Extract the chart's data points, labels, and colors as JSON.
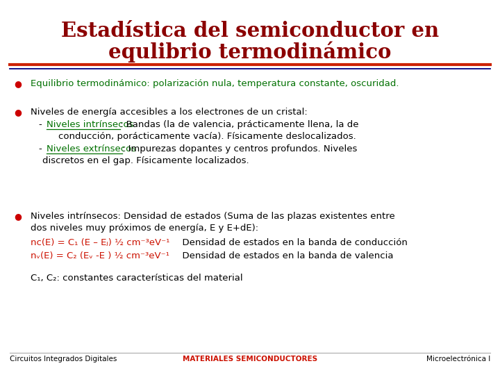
{
  "title_line1": "Estadística del semiconductor en",
  "title_line2": "equlibrio termodinámico",
  "title_color": "#8B0000",
  "bg_color": "#FFFFFF",
  "sep_red": "#CC2200",
  "sep_navy": "#000080",
  "bullet_color": "#CC0000",
  "text_color": "#000000",
  "green_color": "#007000",
  "red_color": "#CC1100",
  "bullet1": "Equilibrio termodinámico: polarización nula, temperatura constante, oscuridad.",
  "bullet2_main": "Niveles de energía accesibles a los electrones de un cristal:",
  "sub1_green": "Niveles intrínsecos",
  "sub1_rest": ": Bandas (la de valencia, prácticamente llena, la de",
  "sub1_cont": "conducción, porácticamente vacía). Físicamente deslocalizados.",
  "sub2_green": "Niveles extrínsecos",
  "sub2_rest": ": Impurezas dopantes y centros profundos. Niveles",
  "sub2_cont": "discretos en el gap. Físicamente localizados.",
  "bullet3_l1": "Niveles intrínsecos: Densidad de estados (Suma de las plazas existentes entre",
  "bullet3_l2": "dos niveles muy próximos de energía, E y E+dE):",
  "eq1_red": "nc(E) = C₁ (E – Eⱼ) ½ cm⁻³eV⁻¹",
  "eq1_black": "  Densidad de estados en la banda de conducción",
  "eq2_red": "nᵥ(E) = C₂ (Eᵥ -E ) ½ cm⁻³eV⁻¹",
  "eq2_black": "  Densidad de estados en la banda de valencia",
  "c_line": "C₁, C₂: constantes características del material",
  "footer_left": "Circuitos Integrados Digitales",
  "footer_center": "MATERIALES SEMICONDUCTORES",
  "footer_right": "Microelectrónica I"
}
